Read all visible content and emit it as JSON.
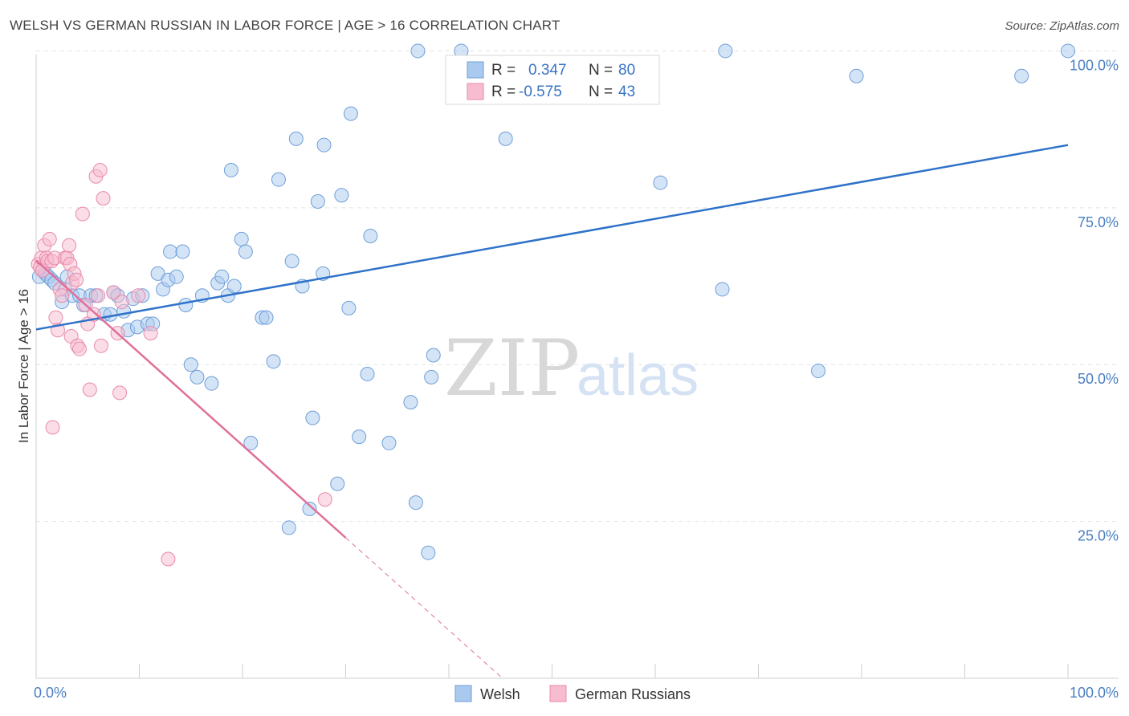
{
  "title": "WELSH VS GERMAN RUSSIAN IN LABOR FORCE | AGE > 16 CORRELATION CHART",
  "source": "Source: ZipAtlas.com",
  "watermark": {
    "zip": "ZIP",
    "atlas": "atlas"
  },
  "colors": {
    "welsh_fill": "#a9c9ef",
    "welsh_stroke": "#6f9fd8",
    "welsh_line": "#2f72c9",
    "gr_fill": "#f7bcd0",
    "gr_stroke": "#e88aab",
    "gr_line": "#e0709a",
    "grid": "#e3e3e3",
    "tick_text": "#4a7fc1"
  },
  "legend": {
    "r_label": "R =",
    "n_label": "N =",
    "welsh": {
      "r": "0.347",
      "n": "80"
    },
    "german_russians": {
      "r": "-0.575",
      "n": "43"
    }
  },
  "chart_data": {
    "type": "scatter",
    "title": "WELSH VS GERMAN RUSSIAN IN LABOR FORCE | AGE > 16 CORRELATION CHART",
    "xlabel": "",
    "ylabel": "In Labor Force | Age > 16",
    "xlim": [
      0,
      100
    ],
    "ylim": [
      0,
      103
    ],
    "x_tick_labels": [
      "0.0%",
      "100.0%"
    ],
    "y_ticks": [
      25,
      50,
      75,
      100
    ],
    "y_tick_labels": [
      "25.0%",
      "50.0%",
      "75.0%",
      "100.0%"
    ],
    "grid": true,
    "series": [
      {
        "name": "Welsh",
        "r": 0.347,
        "n": 80,
        "trend": {
          "x0": 0,
          "y0": 55.6,
          "x1": 100,
          "y1": 85.0
        },
        "points": [
          [
            0.3,
            64
          ],
          [
            0.6,
            65
          ],
          [
            0.9,
            64.5
          ],
          [
            1.2,
            64
          ],
          [
            1.5,
            63.5
          ],
          [
            1.8,
            63
          ],
          [
            2.5,
            60
          ],
          [
            2.8,
            62
          ],
          [
            3.0,
            64
          ],
          [
            3.5,
            61
          ],
          [
            4.2,
            61
          ],
          [
            4.6,
            59.5
          ],
          [
            5.3,
            61
          ],
          [
            5.8,
            61
          ],
          [
            6.6,
            58
          ],
          [
            7.2,
            58
          ],
          [
            7.5,
            61.5
          ],
          [
            7.9,
            61
          ],
          [
            8.5,
            58.5
          ],
          [
            8.9,
            55.5
          ],
          [
            9.4,
            60.5
          ],
          [
            9.8,
            56
          ],
          [
            10.3,
            61
          ],
          [
            10.8,
            56.5
          ],
          [
            11.3,
            56.5
          ],
          [
            11.8,
            64.5
          ],
          [
            12.3,
            62
          ],
          [
            12.8,
            63.5
          ],
          [
            13.0,
            68
          ],
          [
            13.6,
            64
          ],
          [
            14.2,
            68
          ],
          [
            14.5,
            59.5
          ],
          [
            15.0,
            50
          ],
          [
            15.6,
            48
          ],
          [
            16.1,
            61
          ],
          [
            17.0,
            47
          ],
          [
            17.6,
            63
          ],
          [
            18.0,
            64
          ],
          [
            18.6,
            61
          ],
          [
            18.9,
            81
          ],
          [
            19.2,
            62.5
          ],
          [
            19.9,
            70
          ],
          [
            20.3,
            68
          ],
          [
            20.8,
            37.5
          ],
          [
            21.9,
            57.5
          ],
          [
            22.3,
            57.5
          ],
          [
            23.0,
            50.5
          ],
          [
            23.5,
            79.5
          ],
          [
            24.5,
            24
          ],
          [
            24.8,
            66.5
          ],
          [
            25.2,
            86
          ],
          [
            25.8,
            62.5
          ],
          [
            26.5,
            27
          ],
          [
            26.8,
            41.5
          ],
          [
            27.3,
            76
          ],
          [
            27.8,
            64.5
          ],
          [
            27.9,
            85
          ],
          [
            29.2,
            31
          ],
          [
            29.6,
            77
          ],
          [
            30.3,
            59
          ],
          [
            30.5,
            90
          ],
          [
            31.3,
            38.5
          ],
          [
            32.1,
            48.5
          ],
          [
            32.4,
            70.5
          ],
          [
            34.2,
            37.5
          ],
          [
            36.3,
            44
          ],
          [
            36.8,
            28
          ],
          [
            37.0,
            100
          ],
          [
            38.0,
            20
          ],
          [
            38.3,
            48
          ],
          [
            38.5,
            51.5
          ],
          [
            41.2,
            100
          ],
          [
            45.5,
            86
          ],
          [
            60.5,
            79
          ],
          [
            66.5,
            62
          ],
          [
            66.8,
            100
          ],
          [
            75.8,
            49
          ],
          [
            79.5,
            96
          ],
          [
            95.5,
            96
          ],
          [
            100,
            100
          ]
        ]
      },
      {
        "name": "German Russians",
        "r": -0.575,
        "n": 43,
        "trend": {
          "x0": 0,
          "y0": 66.6,
          "x1": 30,
          "y1": 22.4
        },
        "trend_dashed": {
          "x0": 30,
          "y0": 22.4,
          "x1": 45.2,
          "y1": 0
        },
        "points": [
          [
            0.2,
            66
          ],
          [
            0.4,
            65.5
          ],
          [
            0.5,
            67
          ],
          [
            0.6,
            65
          ],
          [
            0.8,
            69
          ],
          [
            1.0,
            67
          ],
          [
            1.1,
            66.5
          ],
          [
            1.3,
            70
          ],
          [
            1.5,
            66.5
          ],
          [
            1.6,
            40
          ],
          [
            1.8,
            67
          ],
          [
            1.9,
            57.5
          ],
          [
            2.1,
            55.5
          ],
          [
            2.3,
            62
          ],
          [
            2.5,
            61
          ],
          [
            2.8,
            67
          ],
          [
            3.0,
            67
          ],
          [
            3.2,
            69
          ],
          [
            3.3,
            66
          ],
          [
            3.4,
            54.5
          ],
          [
            3.5,
            63
          ],
          [
            3.7,
            64.5
          ],
          [
            3.9,
            63.5
          ],
          [
            4.0,
            53
          ],
          [
            4.2,
            52.5
          ],
          [
            4.5,
            74
          ],
          [
            4.8,
            59.5
          ],
          [
            5.0,
            56.5
          ],
          [
            5.2,
            46
          ],
          [
            5.6,
            58
          ],
          [
            5.8,
            80
          ],
          [
            6.0,
            61
          ],
          [
            6.2,
            81
          ],
          [
            6.3,
            53
          ],
          [
            6.5,
            76.5
          ],
          [
            7.5,
            61.5
          ],
          [
            7.9,
            55
          ],
          [
            8.1,
            45.5
          ],
          [
            8.3,
            60
          ],
          [
            9.9,
            61
          ],
          [
            11.1,
            55
          ],
          [
            12.8,
            19
          ],
          [
            28.0,
            28.5
          ]
        ]
      }
    ]
  },
  "bottom_legend": {
    "welsh": "Welsh",
    "german_russians": "German Russians"
  }
}
